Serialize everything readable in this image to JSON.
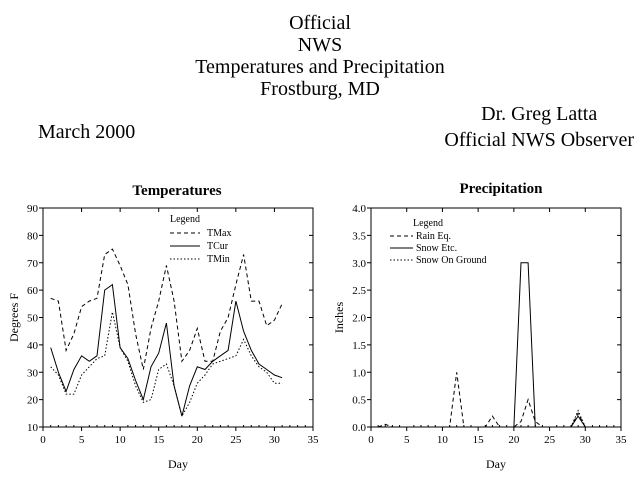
{
  "header": {
    "title_lines": [
      "Official",
      "NWS",
      "Temperatures and Precipitation",
      "Frostburg, MD"
    ],
    "month": "March 2000",
    "observer_lines": [
      "Dr. Greg Latta",
      "Official NWS Observer"
    ]
  },
  "chart_data": [
    {
      "type": "line",
      "title": "Temperatures",
      "xlabel": "Day",
      "ylabel": "Degrees F",
      "xlim": [
        0,
        35
      ],
      "ylim": [
        10,
        90
      ],
      "xticks": [
        0,
        5,
        10,
        15,
        20,
        25,
        30,
        35
      ],
      "yticks": [
        10,
        20,
        30,
        40,
        50,
        60,
        70,
        80,
        90
      ],
      "grid": false,
      "legend_title": "Legend",
      "legend_position": "top-center",
      "series": [
        {
          "name": "TMax",
          "style": "dashed",
          "x": [
            1,
            2,
            3,
            4,
            5,
            6,
            7,
            8,
            9,
            10,
            11,
            12,
            13,
            14,
            15,
            16,
            17,
            18,
            19,
            20,
            21,
            22,
            23,
            24,
            25,
            26,
            27,
            28,
            29,
            30,
            31
          ],
          "values": [
            57,
            56,
            38,
            44,
            54,
            56,
            57,
            73,
            75,
            69,
            62,
            44,
            31,
            46,
            56,
            69,
            56,
            34,
            38,
            46,
            34,
            34,
            45,
            50,
            62,
            73,
            56,
            56,
            47,
            49,
            55
          ]
        },
        {
          "name": "TCur",
          "style": "solid",
          "x": [
            1,
            2,
            3,
            4,
            5,
            6,
            7,
            8,
            9,
            10,
            11,
            12,
            13,
            14,
            15,
            16,
            17,
            18,
            19,
            20,
            21,
            22,
            23,
            24,
            25,
            26,
            27,
            28,
            29,
            30,
            31
          ],
          "values": [
            39,
            30,
            23,
            31,
            36,
            34,
            36,
            60,
            62,
            39,
            35,
            27,
            20,
            32,
            37,
            48,
            25,
            14,
            25,
            32,
            31,
            34,
            36,
            38,
            56,
            45,
            38,
            33,
            31,
            29,
            28
          ]
        },
        {
          "name": "TMin",
          "style": "dotted",
          "x": [
            1,
            2,
            3,
            4,
            5,
            6,
            7,
            8,
            9,
            10,
            11,
            12,
            13,
            14,
            15,
            16,
            17,
            18,
            19,
            20,
            21,
            22,
            23,
            24,
            25,
            26,
            27,
            28,
            29,
            30,
            31
          ],
          "values": [
            32,
            29,
            22,
            22,
            29,
            32,
            35,
            36,
            52,
            39,
            34,
            25,
            19,
            20,
            31,
            33,
            25,
            14,
            19,
            26,
            29,
            33,
            34,
            35,
            36,
            42,
            36,
            32,
            30,
            26,
            26
          ]
        }
      ]
    },
    {
      "type": "line",
      "title": "Precipitation",
      "xlabel": "Day",
      "ylabel": "Inches",
      "xlim": [
        0,
        35
      ],
      "ylim": [
        0.0,
        4.0
      ],
      "xticks": [
        0,
        5,
        10,
        15,
        20,
        25,
        30,
        35
      ],
      "yticks": [
        "0.0",
        "0.5",
        "1.0",
        "1.5",
        "2.0",
        "2.5",
        "3.0",
        "3.5",
        "4.0"
      ],
      "grid": false,
      "legend_title": "Legend",
      "legend_position": "top-left",
      "series": [
        {
          "name": "Rain Eq.",
          "style": "dashed",
          "x": [
            1,
            2,
            3,
            4,
            5,
            6,
            7,
            8,
            9,
            10,
            11,
            12,
            13,
            14,
            15,
            16,
            17,
            18,
            19,
            20,
            21,
            22,
            23,
            24,
            25,
            26,
            27,
            28,
            29,
            30,
            31
          ],
          "values": [
            0,
            0.05,
            0,
            0,
            0,
            0,
            0,
            0,
            0,
            0,
            0,
            1.0,
            0,
            0,
            0,
            0,
            0.2,
            0,
            0,
            0,
            0.1,
            0.5,
            0.1,
            0,
            0,
            0,
            0,
            0,
            0.25,
            0,
            0
          ]
        },
        {
          "name": "Snow Etc.",
          "style": "solid",
          "x": [
            1,
            2,
            3,
            4,
            5,
            6,
            7,
            8,
            9,
            10,
            11,
            12,
            13,
            14,
            15,
            16,
            17,
            18,
            19,
            20,
            21,
            22,
            23,
            24,
            25,
            26,
            27,
            28,
            29,
            30,
            31
          ],
          "values": [
            0,
            0,
            0,
            0,
            0,
            0,
            0,
            0,
            0,
            0,
            0,
            0,
            0,
            0,
            0,
            0,
            0,
            0,
            0,
            0,
            3.0,
            3.0,
            0,
            0,
            0,
            0,
            0,
            0,
            0.2,
            0,
            0
          ]
        },
        {
          "name": "Snow On Ground",
          "style": "dotted",
          "x": [
            1,
            2,
            3,
            4,
            5,
            6,
            7,
            8,
            9,
            10,
            11,
            12,
            13,
            14,
            15,
            16,
            17,
            18,
            19,
            20,
            21,
            22,
            23,
            24,
            25,
            26,
            27,
            28,
            29,
            30,
            31
          ],
          "values": [
            0,
            0,
            0,
            0,
            0,
            0,
            0,
            0,
            0,
            0,
            0,
            0,
            0,
            0,
            0,
            0,
            0,
            0,
            0,
            0,
            0,
            0,
            0,
            0,
            0,
            0,
            0,
            0,
            0.3,
            0,
            0
          ]
        }
      ]
    }
  ]
}
